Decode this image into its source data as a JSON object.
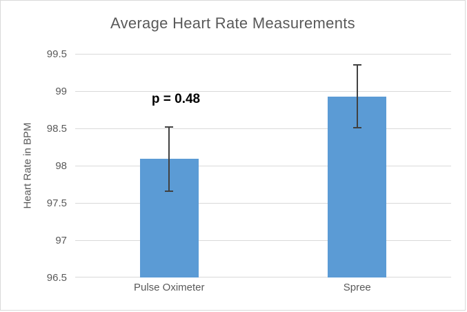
{
  "chart_data": {
    "type": "bar",
    "title": "Average Heart Rate Measurements",
    "xlabel": "",
    "ylabel": "Heart Rate in BPM",
    "categories": [
      "Pulse Oximeter",
      "Spree"
    ],
    "values": [
      98.09,
      98.93
    ],
    "error_bars": [
      0.43,
      0.42
    ],
    "annotation": {
      "text": "p = 0.48",
      "anchor": "above Pulse Oximeter bar"
    },
    "ylim": [
      96.5,
      99.5
    ],
    "yticks": [
      96.5,
      97,
      97.5,
      98,
      98.5,
      99,
      99.5
    ],
    "ytick_labels": [
      "96.5",
      "97",
      "97.5",
      "98",
      "98.5",
      "99",
      "99.5"
    ],
    "grid": true,
    "legend": false,
    "colors": {
      "bar": "#5B9BD5",
      "error_bar": "#404040",
      "gridline": "#D9D9D9",
      "axis_line": "#D9D9D9",
      "text": "#595959",
      "title": "#595959",
      "annotation": "#000000"
    }
  }
}
